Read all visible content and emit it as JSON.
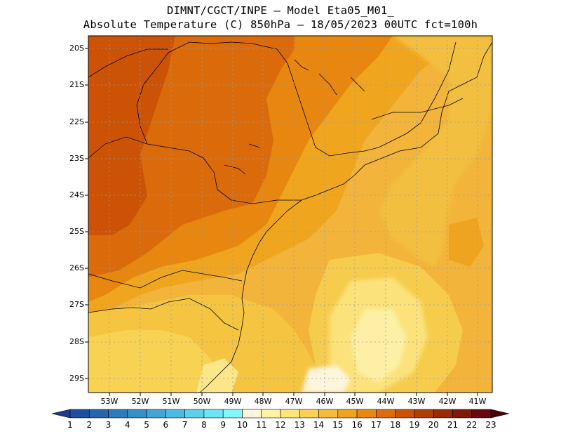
{
  "header": {
    "line1": "DIMNT/CGCT/INPE –  Model Eta05_M01_",
    "line2": "Absolute Temperature (C) 850hPa –  18/05/2023 00UTC fct=100h"
  },
  "axes": {
    "lat_labels": [
      "20S",
      "21S",
      "22S",
      "23S",
      "24S",
      "25S",
      "26S",
      "27S",
      "28S",
      "29S"
    ],
    "lon_labels": [
      "53W",
      "52W",
      "51W",
      "50W",
      "49W",
      "48W",
      "47W",
      "46W",
      "45W",
      "44W",
      "43W",
      "42W",
      "41W"
    ]
  },
  "colorbar": {
    "labels": [
      "1",
      "2",
      "3",
      "4",
      "5",
      "6",
      "7",
      "8",
      "9",
      "10",
      "11",
      "12",
      "13",
      "14",
      "15",
      "16",
      "17",
      "18",
      "19",
      "20",
      "21",
      "22",
      "23"
    ],
    "colors": [
      "#1f3d8c",
      "#1e4f9e",
      "#2566ad",
      "#2c7bbd",
      "#3690c8",
      "#42a5d4",
      "#4fbadf",
      "#5dd0ea",
      "#6ce6f5",
      "#80f8fc",
      "#fff4dc",
      "#fff3a8",
      "#fde676",
      "#f9d155",
      "#f5bb3a",
      "#efa420",
      "#e88a12",
      "#db6d0a",
      "#cc5306",
      "#b23d05",
      "#992a06",
      "#801a08",
      "#68070c",
      "#4a0008"
    ]
  },
  "map": {
    "region": "Southeast Brazil",
    "field": "850hPa temperature"
  }
}
